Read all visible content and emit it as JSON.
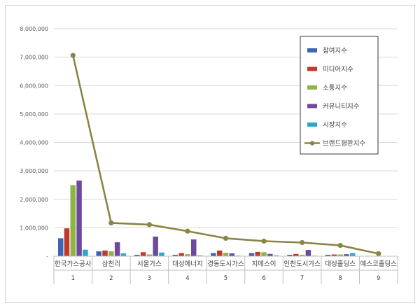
{
  "chart_data": {
    "type": "bar",
    "title": "",
    "xlabel": "",
    "ylabel": "",
    "ylim": [
      0,
      8000000
    ],
    "yticks": [
      0,
      1000000,
      2000000,
      3000000,
      4000000,
      5000000,
      6000000,
      7000000,
      8000000
    ],
    "ytick_labels": [
      "-",
      "1,000,000",
      "2,000,000",
      "3,000,000",
      "4,000,000",
      "5,000,000",
      "6,000,000",
      "7,000,000",
      "8,000,000"
    ],
    "categories": [
      "한국가스공사",
      "삼천리",
      "서울가스",
      "대성에너지",
      "경동도시가스",
      "지에스이",
      "인천도시가스",
      "대성홀딩스",
      "예스코홀딩스"
    ],
    "category_index": [
      "1",
      "2",
      "3",
      "4",
      "5",
      "6",
      "7",
      "8",
      "9"
    ],
    "series": [
      {
        "name": "참여지수",
        "kind": "bar",
        "color": "#3F64B3",
        "values": [
          630000,
          170000,
          50000,
          50000,
          110000,
          110000,
          50000,
          50000,
          10000
        ]
      },
      {
        "name": "미디어지수",
        "kind": "bar",
        "color": "#C1392B",
        "values": [
          980000,
          200000,
          140000,
          110000,
          200000,
          150000,
          80000,
          60000,
          10000
        ]
      },
      {
        "name": "소통지수",
        "kind": "bar",
        "color": "#8DB543",
        "values": [
          2500000,
          170000,
          60000,
          70000,
          120000,
          140000,
          50000,
          60000,
          10000
        ]
      },
      {
        "name": "커뮤니티지수",
        "kind": "bar",
        "color": "#6E4A9E",
        "values": [
          2660000,
          490000,
          690000,
          590000,
          100000,
          80000,
          220000,
          70000,
          10000
        ]
      },
      {
        "name": "시장지수",
        "kind": "bar",
        "color": "#31A6C8",
        "values": [
          230000,
          100000,
          130000,
          30000,
          20000,
          30000,
          20000,
          110000,
          10000
        ]
      },
      {
        "name": "브랜드평판지수",
        "kind": "line",
        "color": "#8A8545",
        "values": [
          7060000,
          1170000,
          1110000,
          880000,
          630000,
          530000,
          480000,
          380000,
          90000
        ]
      }
    ],
    "grid": true,
    "legend": "top-right"
  }
}
